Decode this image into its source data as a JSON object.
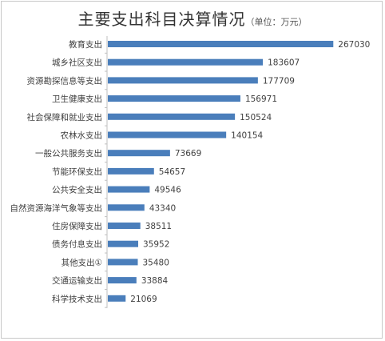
{
  "chart_data": {
    "type": "bar",
    "orientation": "horizontal",
    "title": "主要支出科目决算情况",
    "subtitle": "（单位：万元）",
    "categories": [
      "教育支出",
      "城乡社区支出",
      "资源勘探信息等支出",
      "卫生健康支出",
      "社会保障和就业支出",
      "农林水支出",
      "一般公共服务支出",
      "节能环保支出",
      "公共安全支出",
      "自然资源海洋气象等支出",
      "住房保障支出",
      "债务付息支出",
      "其他支出①",
      "交通运输支出",
      "科学技术支出"
    ],
    "values": [
      267030,
      183607,
      177709,
      156971,
      150524,
      140154,
      73669,
      54657,
      49546,
      43340,
      38511,
      35952,
      35480,
      33884,
      21069
    ],
    "data_labels": [
      "267030",
      "183607",
      "177709",
      "156971",
      "150524",
      "140154",
      "73669",
      "54657",
      "49546",
      "43340",
      "38511",
      "35952",
      "35480",
      "33884",
      "21069"
    ],
    "xlim": [
      0,
      280000
    ],
    "bar_color": "#4a7ebb",
    "grid": false,
    "legend": "none"
  }
}
